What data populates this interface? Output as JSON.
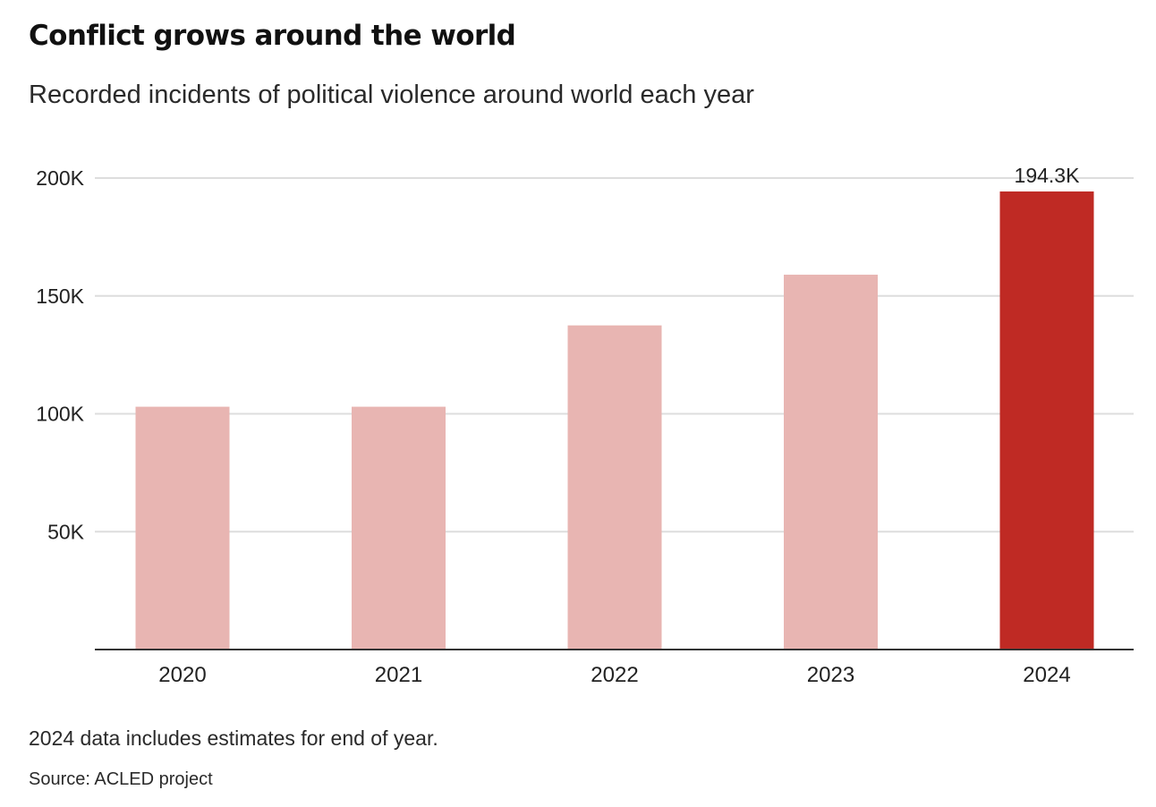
{
  "header": {
    "title": "Conflict grows around the world",
    "subtitle": "Recorded incidents of political violence around world each year"
  },
  "footer": {
    "note": "2024 data includes estimates for end of year.",
    "source": "Source: ACLED project"
  },
  "colors": {
    "bar_default": "#e8b5b2",
    "bar_highlight": "#bf2a24",
    "gridline": "#dddddd",
    "axis": "#333333",
    "text": "#222222"
  },
  "chart_data": {
    "type": "bar",
    "title": "Conflict grows around the world",
    "subtitle": "Recorded incidents of political violence around world each year",
    "categories": [
      "2020",
      "2021",
      "2022",
      "2023",
      "2024"
    ],
    "values": [
      103000,
      103000,
      137500,
      159000,
      194300
    ],
    "highlight_index": 4,
    "data_labels": [
      {
        "index": 4,
        "text": "194.3K"
      }
    ],
    "ylim": [
      0,
      200000
    ],
    "yticks": [
      50000,
      100000,
      150000,
      200000
    ],
    "ytick_labels": [
      "50K",
      "100K",
      "150K",
      "200K"
    ],
    "xlabel": "",
    "ylabel": "",
    "grid": true,
    "legend": "none"
  }
}
